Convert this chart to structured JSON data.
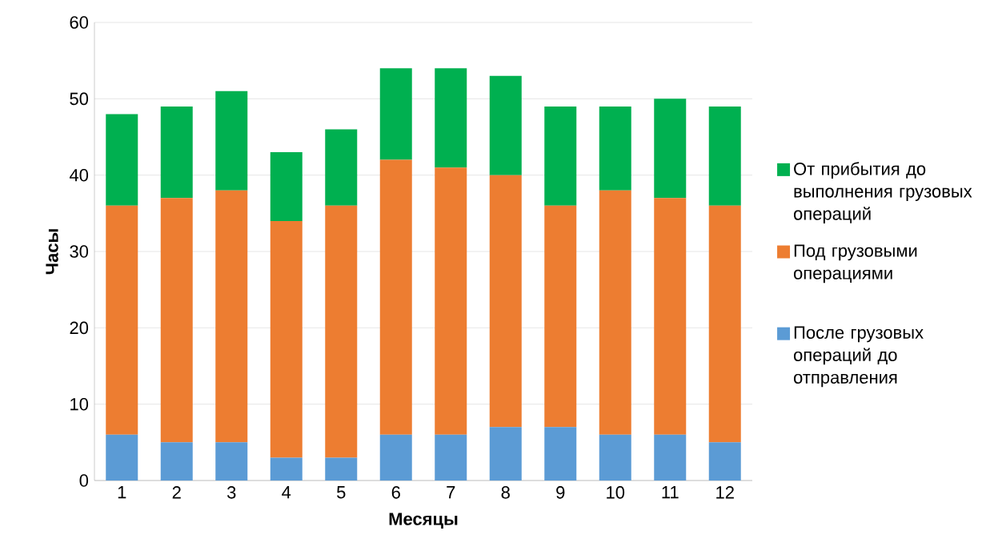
{
  "chart_data": {
    "type": "bar",
    "stacked": true,
    "xlabel": "Месяцы",
    "ylabel": "Часы",
    "categories": [
      "1",
      "2",
      "3",
      "4",
      "5",
      "6",
      "7",
      "8",
      "9",
      "10",
      "11",
      "12"
    ],
    "series": [
      {
        "name": "После грузовых операций до отправления",
        "color": "#5b9bd5",
        "values": [
          6,
          5,
          5,
          3,
          3,
          6,
          6,
          7,
          7,
          6,
          6,
          5
        ]
      },
      {
        "name": "Под грузовыми операциями",
        "color": "#ed7d31",
        "values": [
          30,
          32,
          33,
          31,
          33,
          36,
          35,
          33,
          29,
          32,
          31,
          31
        ]
      },
      {
        "name": "От прибытия до выполнения грузовых операций",
        "color": "#00b050",
        "values": [
          12,
          12,
          13,
          9,
          10,
          12,
          13,
          13,
          13,
          11,
          13,
          13
        ]
      }
    ],
    "ylim": [
      0,
      60
    ],
    "yticks": [
      0,
      10,
      20,
      30,
      40,
      50,
      60
    ],
    "grid": "y",
    "legend": "right"
  }
}
